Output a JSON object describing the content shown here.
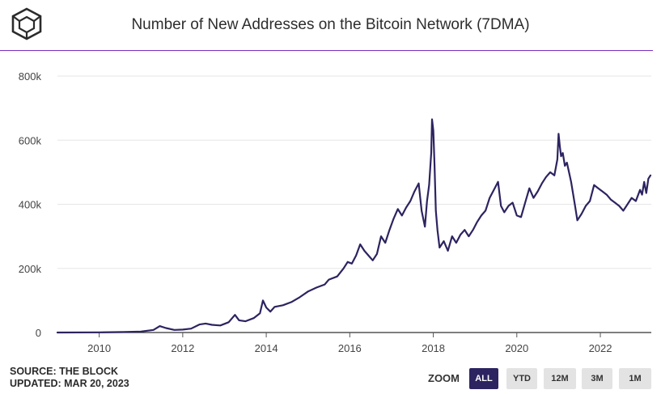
{
  "header": {
    "title": "Number of New Addresses on the Bitcoin Network (7DMA)",
    "logo_icon": "cube-logo-icon"
  },
  "colors": {
    "line": "#2c2460",
    "accent": "#7b2fbf",
    "grid": "#e6e6e6",
    "active_button": "#2c2460"
  },
  "footer": {
    "source": "SOURCE: THE BLOCK",
    "updated": "UPDATED: MAR 20, 2023"
  },
  "zoom": {
    "label": "ZOOM",
    "buttons": [
      "ALL",
      "YTD",
      "12M",
      "3M",
      "1M"
    ],
    "active": "ALL"
  },
  "chart_data": {
    "type": "line",
    "title": "Number of New Addresses on the Bitcoin Network (7DMA)",
    "xlabel": "",
    "ylabel": "",
    "xlim": [
      2009.0,
      2023.22
    ],
    "ylim": [
      0,
      800000
    ],
    "yticks": [
      0,
      200000,
      400000,
      600000,
      800000
    ],
    "ytick_labels": [
      "0",
      "200k",
      "400k",
      "600k",
      "800k"
    ],
    "xticks": [
      2010,
      2012,
      2014,
      2016,
      2018,
      2020,
      2022
    ],
    "xtick_labels": [
      "2010",
      "2012",
      "2014",
      "2016",
      "2018",
      "2020",
      "2022"
    ],
    "grid": "horizontal",
    "legend": "none",
    "series": [
      {
        "x": [
          2009.0,
          2010.0,
          2010.6,
          2011.0,
          2011.3,
          2011.45,
          2011.6,
          2011.8,
          2012.0,
          2012.2,
          2012.4,
          2012.55,
          2012.7,
          2012.9,
          2013.1,
          2013.25,
          2013.35,
          2013.5,
          2013.7,
          2013.85,
          2013.92,
          2014.0,
          2014.1,
          2014.2,
          2014.4,
          2014.6,
          2014.8,
          2015.0,
          2015.2,
          2015.4,
          2015.5,
          2015.7,
          2015.85,
          2015.95,
          2016.05,
          2016.15,
          2016.25,
          2016.35,
          2016.45,
          2016.55,
          2016.65,
          2016.75,
          2016.85,
          2016.95,
          2017.05,
          2017.15,
          2017.25,
          2017.35,
          2017.45,
          2017.55,
          2017.65,
          2017.72,
          2017.8,
          2017.85,
          2017.9,
          2017.95,
          2017.97,
          2018.0,
          2018.03,
          2018.06,
          2018.1,
          2018.15,
          2018.25,
          2018.35,
          2018.45,
          2018.55,
          2018.65,
          2018.75,
          2018.85,
          2018.95,
          2019.05,
          2019.15,
          2019.25,
          2019.35,
          2019.45,
          2019.55,
          2019.62,
          2019.7,
          2019.8,
          2019.9,
          2020.0,
          2020.1,
          2020.2,
          2020.3,
          2020.4,
          2020.5,
          2020.6,
          2020.7,
          2020.8,
          2020.9,
          2020.97,
          2021.0,
          2021.03,
          2021.06,
          2021.1,
          2021.15,
          2021.2,
          2021.25,
          2021.3,
          2021.35,
          2021.4,
          2021.45,
          2021.55,
          2021.65,
          2021.75,
          2021.85,
          2021.95,
          2022.05,
          2022.15,
          2022.25,
          2022.35,
          2022.45,
          2022.55,
          2022.65,
          2022.75,
          2022.85,
          2022.95,
          2023.0,
          2023.05,
          2023.1,
          2023.15,
          2023.2
        ],
        "y": [
          0,
          500,
          1500,
          3000,
          8000,
          20000,
          14000,
          8000,
          9000,
          12000,
          25000,
          28000,
          24000,
          22000,
          32000,
          55000,
          38000,
          35000,
          45000,
          60000,
          100000,
          78000,
          65000,
          80000,
          85000,
          95000,
          110000,
          128000,
          140000,
          150000,
          165000,
          175000,
          200000,
          220000,
          215000,
          240000,
          275000,
          255000,
          240000,
          225000,
          245000,
          300000,
          280000,
          320000,
          355000,
          385000,
          365000,
          390000,
          410000,
          440000,
          465000,
          380000,
          330000,
          410000,
          460000,
          560000,
          665000,
          630000,
          520000,
          380000,
          320000,
          265000,
          285000,
          255000,
          300000,
          280000,
          305000,
          320000,
          300000,
          320000,
          345000,
          365000,
          380000,
          420000,
          445000,
          470000,
          395000,
          375000,
          395000,
          405000,
          365000,
          360000,
          405000,
          450000,
          420000,
          440000,
          465000,
          485000,
          500000,
          490000,
          540000,
          620000,
          580000,
          550000,
          560000,
          520000,
          530000,
          500000,
          470000,
          430000,
          390000,
          350000,
          370000,
          395000,
          410000,
          460000,
          450000,
          440000,
          430000,
          415000,
          405000,
          395000,
          380000,
          400000,
          420000,
          410000,
          445000,
          430000,
          470000,
          435000,
          480000,
          490000
        ]
      }
    ]
  }
}
